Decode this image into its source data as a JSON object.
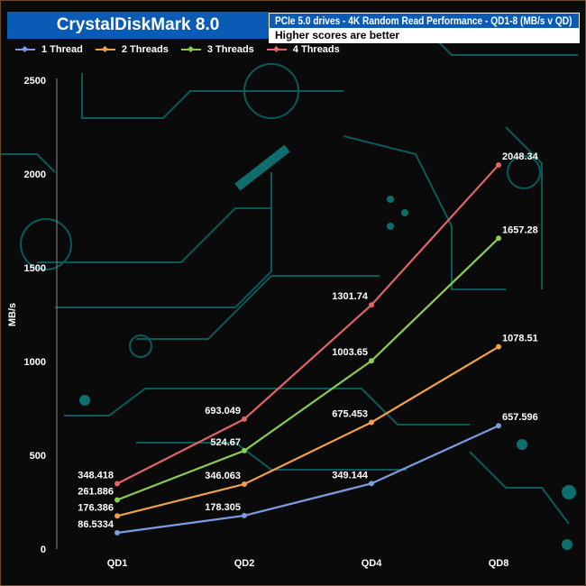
{
  "header": {
    "title": "CrystalDiskMark 8.0",
    "subtitle": "PCIe 5.0 drives - 4K Random Read Performance - QD1-8 (MB/s v QD)",
    "note": "Higher scores are better"
  },
  "chart_data": {
    "type": "line",
    "title": "PCIe 5.0 drives - 4K Random Read Performance - QD1-8 (MB/s v QD)",
    "xlabel": "",
    "ylabel": "MB/s",
    "categories": [
      "QD1",
      "QD2",
      "QD4",
      "QD8"
    ],
    "ylim": [
      0,
      2500
    ],
    "yticks": [
      0,
      500,
      1000,
      1500,
      2000,
      2500
    ],
    "grid": false,
    "legend": "top-left",
    "series": [
      {
        "name": "1 Thread",
        "color": "#7b9de0",
        "values": [
          86.5334,
          178.305,
          349.144,
          657.596
        ],
        "labels": [
          "86.5334",
          "178.305",
          "349.144",
          "657.596"
        ]
      },
      {
        "name": "2 Threads",
        "color": "#f0a04a",
        "values": [
          176.386,
          346.063,
          675.453,
          1078.51
        ],
        "labels": [
          "176.386",
          "346.063",
          "675.453",
          "1078.51"
        ]
      },
      {
        "name": "3 Threads",
        "color": "#8ccc55",
        "values": [
          261.886,
          524.67,
          1003.65,
          1657.28
        ],
        "labels": [
          "261.886",
          "524.67",
          "1003.65",
          "1657.28"
        ]
      },
      {
        "name": "4 Threads",
        "color": "#e06468",
        "values": [
          348.418,
          693.049,
          1301.74,
          2048.34
        ],
        "labels": [
          "348.418",
          "693.049",
          "1301.74",
          "2048.34"
        ]
      }
    ]
  }
}
